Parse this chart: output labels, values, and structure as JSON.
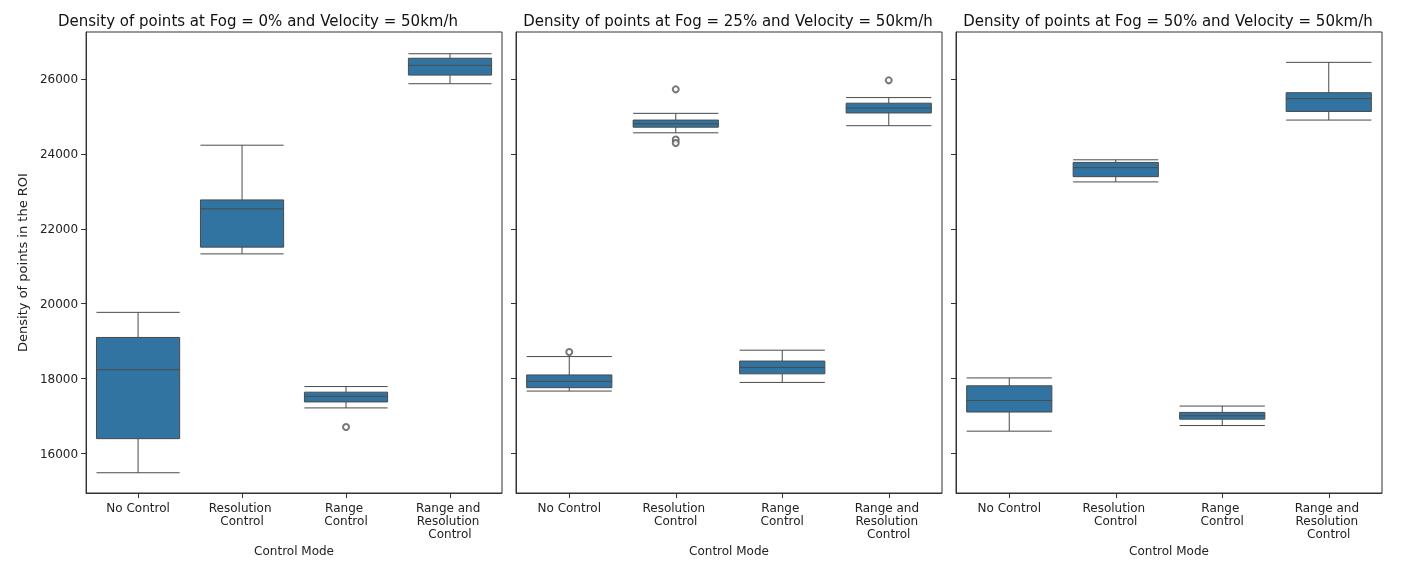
{
  "chart_data": [
    {
      "type": "box",
      "title": "Density of points at Fog = 0% and Velocity = 50km/h",
      "xlabel": "Control Mode",
      "ylabel": "Density of points in the ROI",
      "categories": [
        "No Control",
        "Resolution Control",
        "Range Control",
        "Range and Resolution Control"
      ],
      "color": "#3274a1",
      "ylim": [
        14950,
        27250
      ],
      "yticks": [
        16000,
        18000,
        20000,
        22000,
        24000,
        26000
      ],
      "grid": false,
      "boxes": [
        {
          "low": 15490,
          "q1": 16400,
          "median": 18240,
          "q3": 19100,
          "high": 19770
        },
        {
          "low": 21330,
          "q1": 21510,
          "median": 22530,
          "q3": 22770,
          "high": 24230
        },
        {
          "low": 17220,
          "q1": 17380,
          "median": 17530,
          "q3": 17640,
          "high": 17790,
          "outliers": [
            16710
          ]
        },
        {
          "low": 25870,
          "q1": 26100,
          "median": 26360,
          "q3": 26550,
          "high": 26670
        }
      ]
    },
    {
      "type": "box",
      "title": "Density of points at Fog = 25% and Velocity = 50km/h",
      "xlabel": "Control Mode",
      "categories": [
        "No Control",
        "Resolution Control",
        "Range Control",
        "Range and Resolution Control"
      ],
      "color": "#3274a1",
      "ylim": [
        14950,
        27250
      ],
      "yticks": [
        16000,
        18000,
        20000,
        22000,
        24000,
        26000
      ],
      "grid": false,
      "tick_labels": "x",
      "boxes": [
        {
          "low": 17670,
          "q1": 17760,
          "median": 17930,
          "q3": 18100,
          "high": 18590,
          "outliers": [
            18710
          ]
        },
        {
          "low": 24560,
          "q1": 24710,
          "median": 24800,
          "q3": 24900,
          "high": 25080,
          "outliers": [
            25720,
            24380,
            24290
          ]
        },
        {
          "low": 17900,
          "q1": 18130,
          "median": 18300,
          "q3": 18470,
          "high": 18760
        },
        {
          "low": 24750,
          "q1": 25090,
          "median": 25220,
          "q3": 25350,
          "high": 25500,
          "outliers": [
            25960
          ]
        }
      ]
    },
    {
      "type": "box",
      "title": "Density of points at Fog = 50% and Velocity = 50km/h",
      "xlabel": "Control Mode",
      "categories": [
        "No Control",
        "Resolution Control",
        "Range Control",
        "Range and Resolution Control"
      ],
      "color": "#3274a1",
      "ylim": [
        14950,
        27250
      ],
      "yticks": [
        16000,
        18000,
        20000,
        22000,
        24000,
        26000
      ],
      "grid": false,
      "tick_labels": "x",
      "boxes": [
        {
          "low": 16600,
          "q1": 17110,
          "median": 17420,
          "q3": 17810,
          "high": 18020
        },
        {
          "low": 23250,
          "q1": 23390,
          "median": 23630,
          "q3": 23770,
          "high": 23840
        },
        {
          "low": 16750,
          "q1": 16920,
          "median": 17010,
          "q3": 17100,
          "high": 17270
        },
        {
          "low": 24900,
          "q1": 25130,
          "median": 25470,
          "q3": 25630,
          "high": 26440
        }
      ]
    }
  ]
}
